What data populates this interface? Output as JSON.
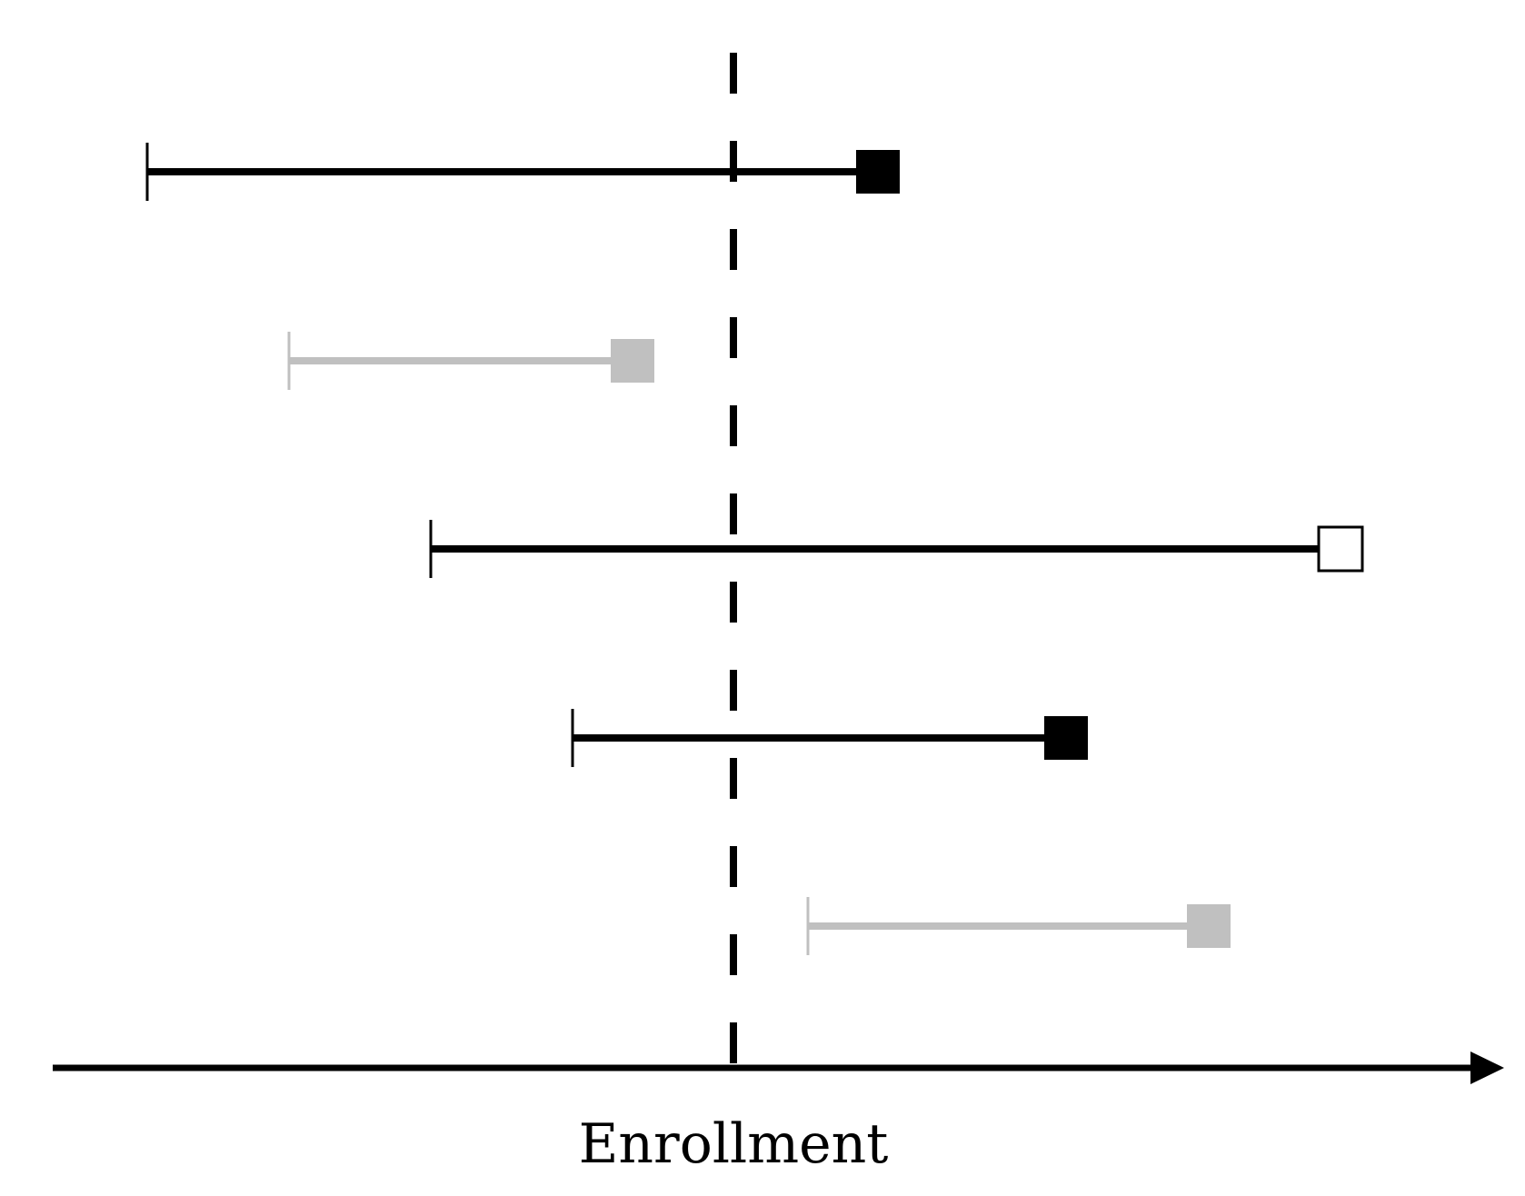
{
  "diagram": {
    "axis_label": "Enrollment",
    "colors": {
      "black": "#000000",
      "gray": "#c0c0c0",
      "open_fill": "#ffffff"
    },
    "subjects": [
      {
        "color": "black",
        "end_marker": "filled-square"
      },
      {
        "color": "gray",
        "end_marker": "filled-square"
      },
      {
        "color": "black",
        "end_marker": "open-square"
      },
      {
        "color": "black",
        "end_marker": "filled-square"
      },
      {
        "color": "gray",
        "end_marker": "filled-square"
      }
    ]
  }
}
